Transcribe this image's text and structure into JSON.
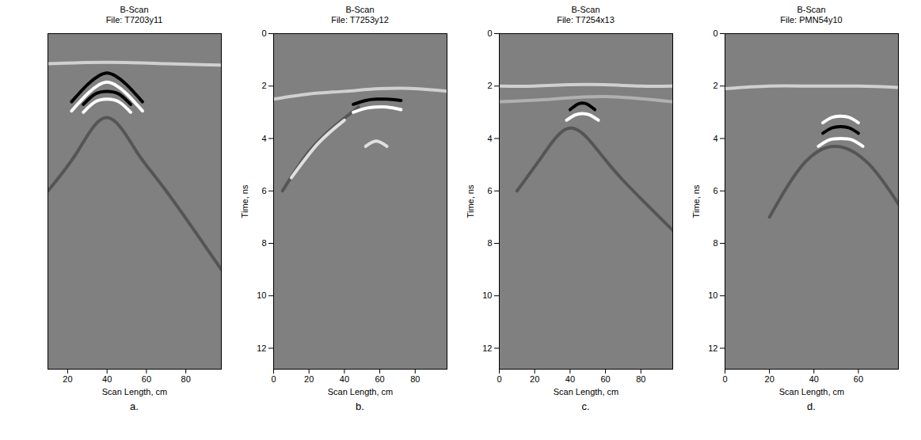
{
  "chart_data": [
    {
      "type": "line",
      "title": "B-Scan",
      "subtitle": "File: T7203y11",
      "label": "a.",
      "xlabel": "Scan Length, cm",
      "xlim": [
        10,
        98
      ],
      "xticks": [
        20,
        40,
        60,
        80
      ],
      "ylim": [
        0,
        12.8
      ],
      "tick_labels": "x",
      "series": [
        {
          "color": "#d0d0d0",
          "x": [
            10,
            30,
            50,
            70,
            98
          ],
          "values": [
            1.15,
            1.1,
            1.1,
            1.15,
            1.2
          ]
        },
        {
          "color": "#555555",
          "x": [
            10,
            25,
            40,
            55,
            70,
            98
          ],
          "values": [
            6,
            4.5,
            3.2,
            4.5,
            6,
            9
          ]
        },
        {
          "color": "#000000",
          "x": [
            22,
            30,
            36,
            40,
            44,
            50,
            58
          ],
          "values": [
            2.6,
            1.95,
            1.6,
            1.5,
            1.6,
            1.95,
            2.6
          ]
        },
        {
          "color": "#ffffff",
          "x": [
            22,
            30,
            36,
            40,
            44,
            50,
            58
          ],
          "values": [
            2.95,
            2.3,
            1.95,
            1.85,
            1.95,
            2.3,
            2.95
          ]
        },
        {
          "color": "#000000",
          "x": [
            28,
            34,
            40,
            46,
            52
          ],
          "values": [
            2.7,
            2.3,
            2.2,
            2.3,
            2.7
          ]
        },
        {
          "color": "#ffffff",
          "x": [
            28,
            34,
            40,
            46,
            52
          ],
          "values": [
            3.0,
            2.6,
            2.5,
            2.6,
            3.0
          ]
        }
      ]
    },
    {
      "type": "line",
      "title": "B-Scan",
      "subtitle": "File: T7253y12",
      "label": "b.",
      "xlabel": "Scan Length, cm",
      "ylabel": "Time, ns",
      "xlim": [
        0,
        98
      ],
      "xticks": [
        0,
        20,
        40,
        60,
        80
      ],
      "ylim": [
        0,
        12.8
      ],
      "yticks": [
        0,
        2,
        4,
        6,
        8,
        10,
        12
      ],
      "series": [
        {
          "color": "#d0d0d0",
          "x": [
            0,
            20,
            40,
            60,
            80,
            98
          ],
          "values": [
            2.5,
            2.3,
            2.2,
            2.1,
            2.1,
            2.2
          ]
        },
        {
          "color": "#555555",
          "x": [
            5,
            20,
            35,
            48
          ],
          "values": [
            6,
            4.5,
            3.5,
            2.8
          ]
        },
        {
          "color": "#e0e0e0",
          "x": [
            10,
            25,
            40
          ],
          "values": [
            5.5,
            4.2,
            3.3
          ]
        },
        {
          "color": "#000000",
          "x": [
            45,
            52,
            58,
            64,
            72
          ],
          "values": [
            2.7,
            2.55,
            2.5,
            2.5,
            2.55
          ]
        },
        {
          "color": "#ffffff",
          "x": [
            45,
            52,
            58,
            64,
            72
          ],
          "values": [
            3.0,
            2.85,
            2.8,
            2.8,
            2.9
          ]
        },
        {
          "color": "#e0e0e0",
          "x": [
            52,
            58,
            64
          ],
          "values": [
            4.3,
            4.1,
            4.3
          ]
        }
      ]
    },
    {
      "type": "line",
      "title": "B-Scan",
      "subtitle": "File: T7254x13",
      "label": "c.",
      "xlabel": "Scan Length, cm",
      "ylabel": "Time, ns",
      "xlim": [
        0,
        98
      ],
      "xticks": [
        0,
        20,
        40,
        60,
        80
      ],
      "ylim": [
        0,
        12.8
      ],
      "yticks": [
        0,
        2,
        4,
        6,
        8,
        10,
        12
      ],
      "series": [
        {
          "color": "#d0d0d0",
          "x": [
            0,
            20,
            40,
            60,
            80,
            98
          ],
          "values": [
            2.0,
            2.0,
            1.95,
            1.95,
            2.0,
            2.0
          ]
        },
        {
          "color": "#b0b0b0",
          "x": [
            0,
            30,
            60,
            98
          ],
          "values": [
            2.6,
            2.5,
            2.4,
            2.6
          ]
        },
        {
          "color": "#555555",
          "x": [
            10,
            25,
            40,
            55,
            70,
            98
          ],
          "values": [
            6,
            4.6,
            3.6,
            4.4,
            5.6,
            7.5
          ]
        },
        {
          "color": "#000000",
          "x": [
            40,
            44,
            47,
            50,
            54
          ],
          "values": [
            2.9,
            2.7,
            2.65,
            2.7,
            2.9
          ]
        },
        {
          "color": "#ffffff",
          "x": [
            38,
            43,
            47,
            51,
            56
          ],
          "values": [
            3.3,
            3.1,
            3.05,
            3.1,
            3.3
          ]
        }
      ]
    },
    {
      "type": "line",
      "title": "B-Scan",
      "subtitle": "File: PMN54y10",
      "label": "d.",
      "xlabel": "Scan Length, cm",
      "ylabel": "Time, ns",
      "xlim": [
        0,
        78
      ],
      "xticks": [
        0,
        20,
        40,
        60
      ],
      "ylim": [
        0,
        12.8
      ],
      "yticks": [
        0,
        2,
        4,
        6,
        8,
        10,
        12
      ],
      "series": [
        {
          "color": "#d0d0d0",
          "x": [
            0,
            20,
            40,
            60,
            78
          ],
          "values": [
            2.1,
            2.0,
            2.0,
            2.0,
            2.05
          ]
        },
        {
          "color": "#555555",
          "x": [
            20,
            35,
            50,
            65,
            78
          ],
          "values": [
            7,
            5,
            4.3,
            5,
            6.5
          ]
        },
        {
          "color": "#ffffff",
          "x": [
            44,
            48,
            52,
            56,
            60
          ],
          "values": [
            3.4,
            3.2,
            3.15,
            3.2,
            3.4
          ]
        },
        {
          "color": "#000000",
          "x": [
            44,
            48,
            52,
            56,
            60
          ],
          "values": [
            3.8,
            3.6,
            3.55,
            3.6,
            3.8
          ]
        },
        {
          "color": "#ffffff",
          "x": [
            42,
            47,
            52,
            57,
            62
          ],
          "values": [
            4.3,
            4.05,
            4.0,
            4.05,
            4.3
          ]
        }
      ]
    }
  ]
}
